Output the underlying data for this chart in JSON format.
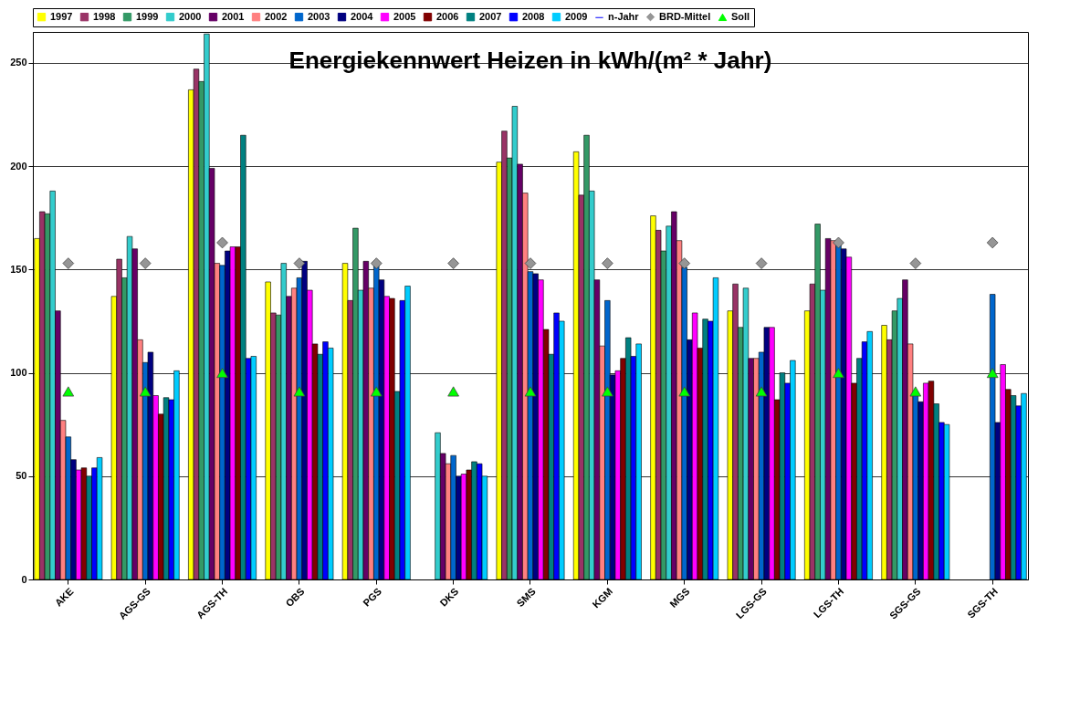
{
  "chart_data": {
    "type": "bar",
    "title": "Energiekennwert Heizen in kWh/(m² * Jahr)",
    "categories": [
      "AKE",
      "AGS-GS",
      "AGS-TH",
      "OBS",
      "PGS",
      "DKS",
      "SMS",
      "KGM",
      "MGS",
      "LGS-GS",
      "LGS-TH",
      "SGS-GS",
      "SGS-TH"
    ],
    "ylim": [
      0,
      265
    ],
    "yticks": [
      0,
      50,
      100,
      150,
      200,
      250
    ],
    "grid": "y",
    "legend": "top",
    "series": [
      {
        "name": "1997",
        "color": "#ffff00",
        "values": [
          165,
          137,
          237,
          144,
          153,
          null,
          202,
          207,
          176,
          130,
          130,
          123,
          null
        ]
      },
      {
        "name": "1998",
        "color": "#993366",
        "values": [
          178,
          155,
          247,
          129,
          135,
          null,
          217,
          186,
          169,
          143,
          143,
          116,
          null
        ]
      },
      {
        "name": "1999",
        "color": "#339966",
        "values": [
          177,
          146,
          241,
          128,
          170,
          null,
          204,
          215,
          159,
          122,
          172,
          130,
          null
        ]
      },
      {
        "name": "2000",
        "color": "#33cccc",
        "values": [
          188,
          166,
          264,
          153,
          140,
          71,
          229,
          188,
          171,
          141,
          140,
          136,
          null
        ]
      },
      {
        "name": "2001",
        "color": "#660066",
        "values": [
          130,
          160,
          199,
          137,
          154,
          61,
          201,
          145,
          178,
          107,
          165,
          145,
          null
        ]
      },
      {
        "name": "2002",
        "color": "#ff8080",
        "values": [
          77,
          116,
          153,
          141,
          141,
          56,
          187,
          113,
          164,
          107,
          164,
          114,
          null
        ]
      },
      {
        "name": "2003",
        "color": "#0066cc",
        "values": [
          69,
          105,
          152,
          146,
          152,
          60,
          149,
          135,
          151,
          110,
          163,
          89,
          138
        ]
      },
      {
        "name": "2004",
        "color": "#000080",
        "values": [
          58,
          110,
          159,
          154,
          145,
          50,
          148,
          99,
          116,
          122,
          160,
          86,
          76
        ]
      },
      {
        "name": "2005",
        "color": "#ff00ff",
        "values": [
          53,
          89,
          161,
          140,
          137,
          51,
          145,
          101,
          129,
          122,
          156,
          95,
          104
        ]
      },
      {
        "name": "2006",
        "color": "#800000",
        "values": [
          54,
          80,
          161,
          114,
          136,
          53,
          121,
          107,
          112,
          87,
          95,
          96,
          92
        ]
      },
      {
        "name": "2007",
        "color": "#008080",
        "values": [
          50,
          88,
          215,
          109,
          91,
          57,
          109,
          117,
          126,
          100,
          107,
          85,
          89
        ]
      },
      {
        "name": "2008",
        "color": "#0000ff",
        "values": [
          54,
          87,
          107,
          115,
          135,
          56,
          129,
          108,
          125,
          95,
          115,
          76,
          84
        ]
      },
      {
        "name": "2009",
        "color": "#00ccff",
        "values": [
          59,
          101,
          108,
          112,
          142,
          50,
          125,
          114,
          146,
          106,
          120,
          75,
          90
        ]
      },
      {
        "name": "n-Jahr",
        "type": "line",
        "color": "#0000ff",
        "values": [
          null,
          null,
          null,
          null,
          null,
          null,
          null,
          null,
          null,
          null,
          null,
          null,
          null
        ]
      },
      {
        "name": "BRD-Mittel",
        "type": "scatter",
        "marker": "diamond",
        "color": "#969696",
        "values": [
          153,
          153,
          163,
          153,
          153,
          153,
          153,
          153,
          153,
          153,
          163,
          153,
          163
        ]
      },
      {
        "name": "Soll",
        "type": "scatter",
        "marker": "triangle",
        "color": "#00ff00",
        "values": [
          91,
          91,
          100,
          91,
          91,
          91,
          91,
          91,
          91,
          91,
          100,
          91,
          100
        ]
      }
    ]
  }
}
